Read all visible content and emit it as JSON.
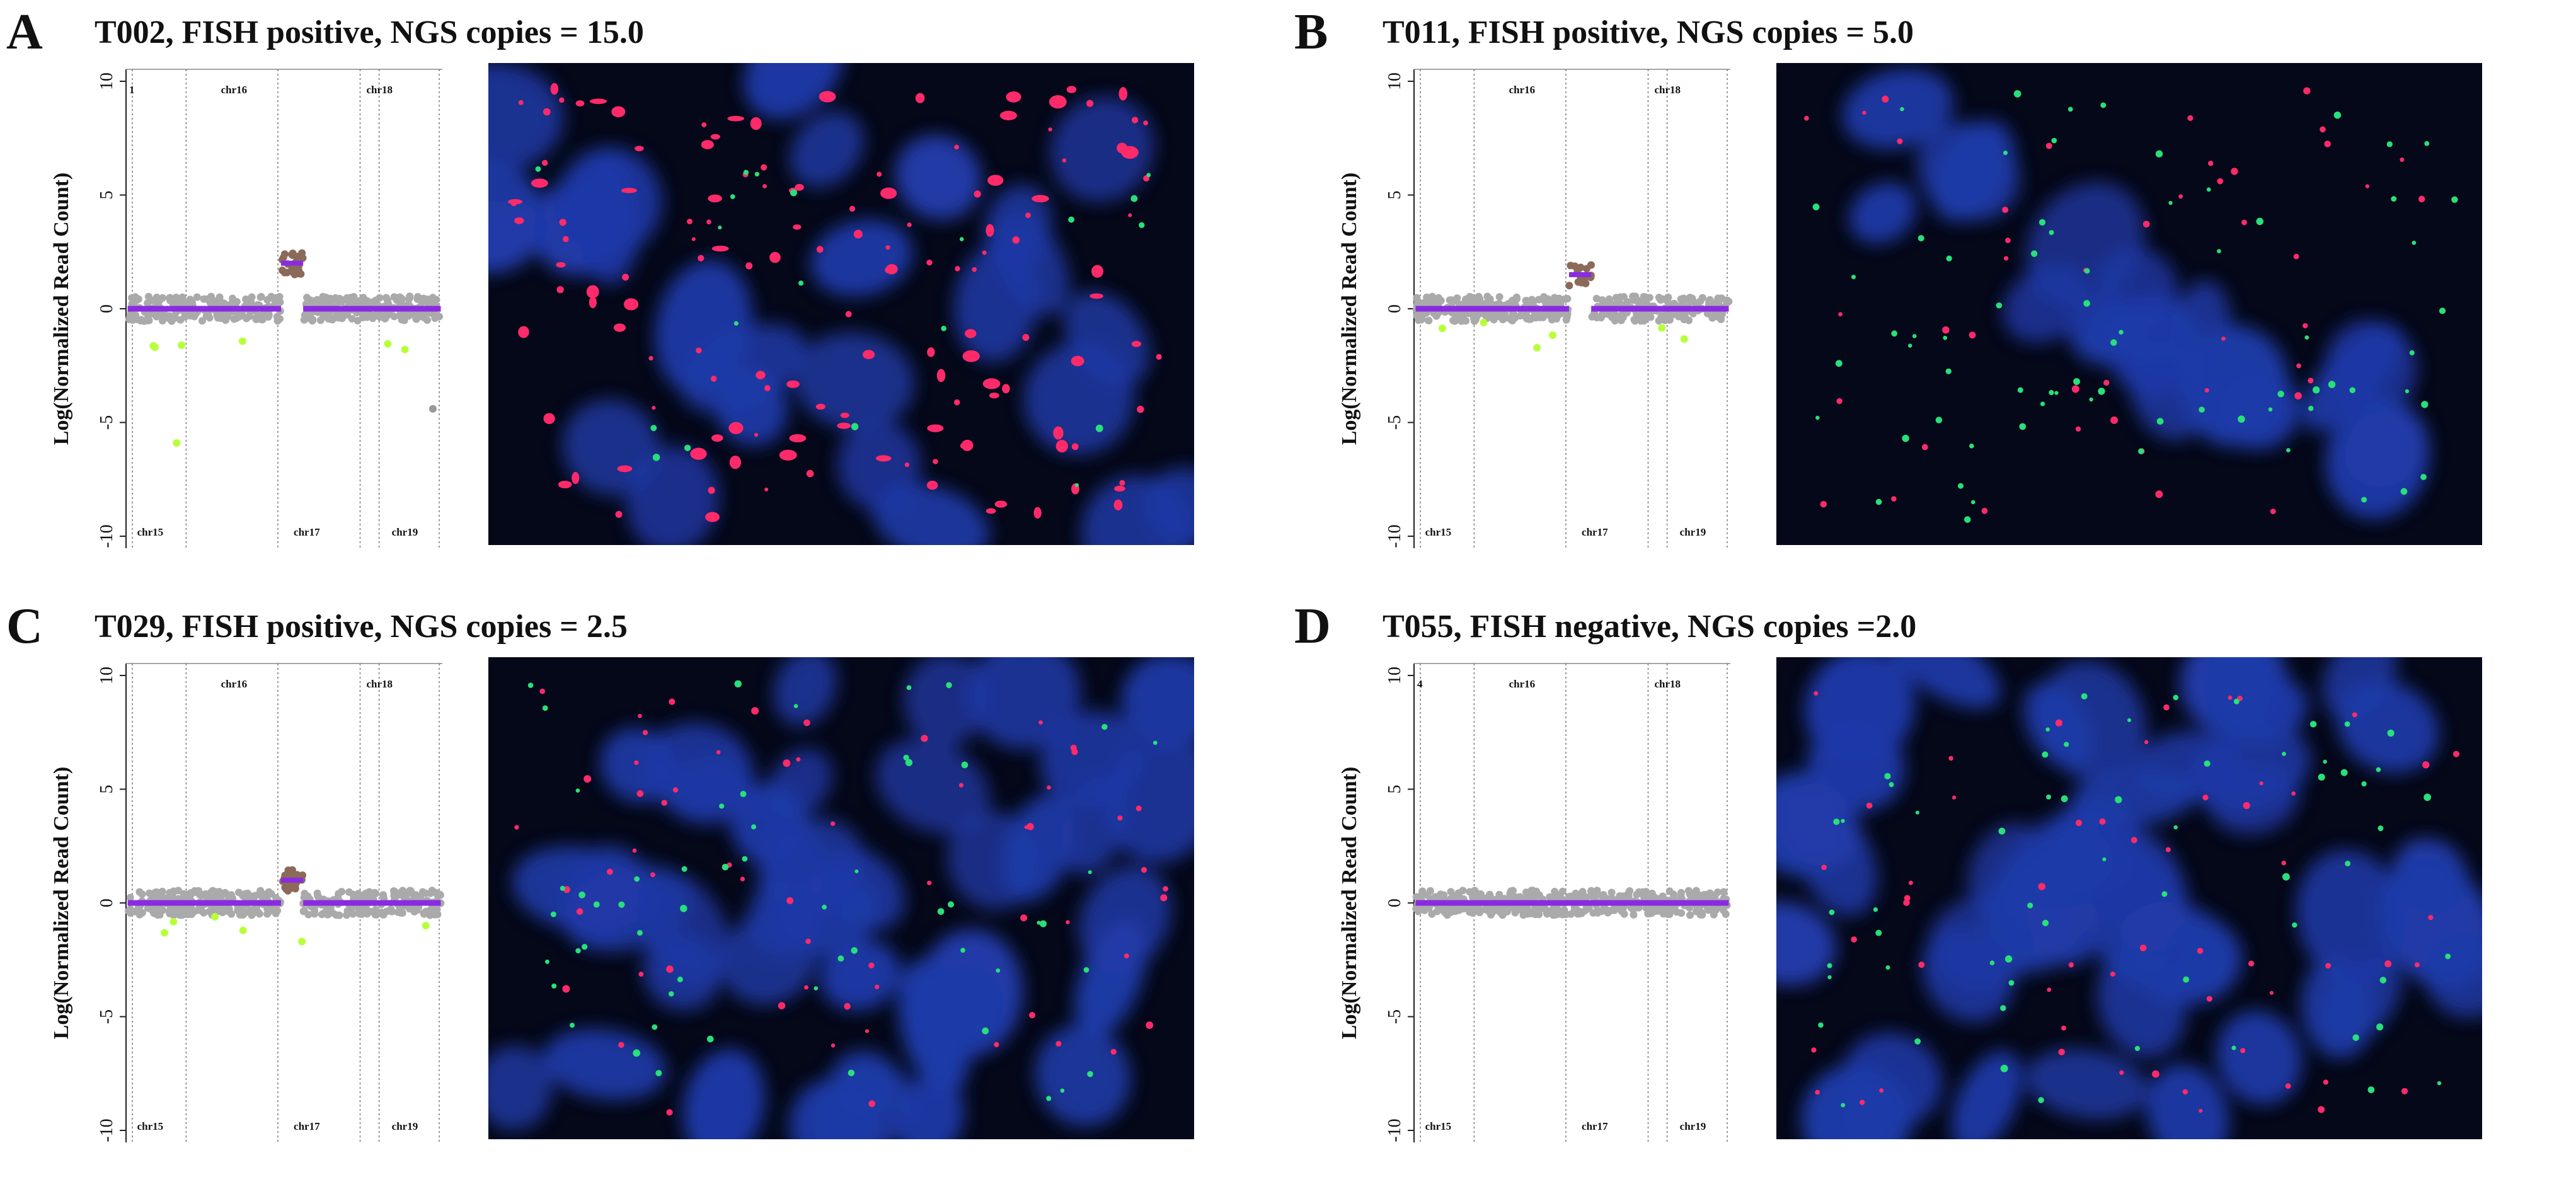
{
  "panels": [
    {
      "letter": "A",
      "title": "T002, FISH positive, NGS  copies = 15.0",
      "plot": {
        "ylabel": "Log(Normalized Read Count)",
        "ylim": [
          -10,
          10
        ],
        "yticks": [
          "10",
          "5",
          "0",
          "-5",
          "-10"
        ],
        "chr_top": [
          "1",
          "chr16",
          "chr18"
        ],
        "chr_bottom": [
          "chr15",
          "chr17",
          "chr19"
        ],
        "amp_level": 2.0
      },
      "micro": {
        "red": 140,
        "green": 20,
        "nuclei": 26
      }
    },
    {
      "letter": "B",
      "title": "T011, FISH positive, NGS  copies = 5.0",
      "plot": {
        "ylabel": "Log(Normalized Read Count)",
        "ylim": [
          -10,
          10
        ],
        "yticks": [
          "10",
          "5",
          "0",
          "-5",
          "-10"
        ],
        "chr_top": [
          "",
          "chr16",
          "chr18"
        ],
        "chr_bottom": [
          "chr15",
          "chr17",
          "chr19"
        ],
        "amp_level": 1.5
      },
      "micro": {
        "red": 45,
        "green": 70,
        "nuclei": 18
      }
    },
    {
      "letter": "C",
      "title": "T029, FISH positive, NGS  copies = 2.5",
      "plot": {
        "ylabel": "Log(Normalized Read Count)",
        "ylim": [
          -10,
          10
        ],
        "yticks": [
          "10",
          "5",
          "0",
          "-5",
          "-10"
        ],
        "chr_top": [
          "",
          "chr16",
          "chr18"
        ],
        "chr_bottom": [
          "chr15",
          "chr17",
          "chr19"
        ],
        "amp_level": 1.0
      },
      "micro": {
        "red": 60,
        "green": 55,
        "nuclei": 40
      }
    },
    {
      "letter": "D",
      "title": "T055, FISH negative, NGS  copies =2.0",
      "plot": {
        "ylabel": "Log(Normalized Read Count)",
        "ylim": [
          -10,
          10
        ],
        "yticks": [
          "10",
          "5",
          "0",
          "-5",
          "-10"
        ],
        "chr_top": [
          "4",
          "chr16",
          "chr18"
        ],
        "chr_bottom": [
          "chr15",
          "chr17",
          "chr19"
        ],
        "amp_level": 0.0
      },
      "micro": {
        "red": 55,
        "green": 60,
        "nuclei": 45
      }
    }
  ],
  "colors": {
    "segment": "#8a2be2",
    "points": "#aaaaaa",
    "amp_points": "#8b6a5a",
    "outlier": "#b8ff3a",
    "dapi": "#1f3aa8",
    "fish_red": "#ff2a6a",
    "fish_green": "#28e07a"
  }
}
